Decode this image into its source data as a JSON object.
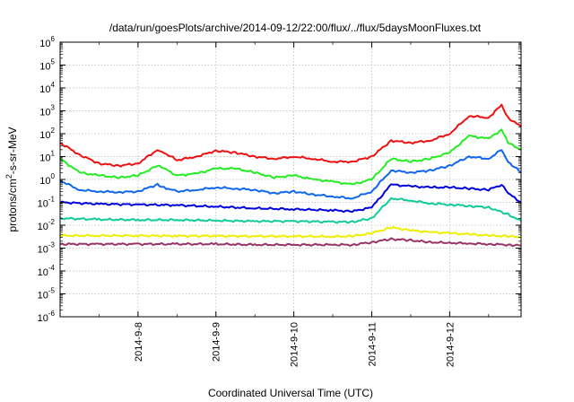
{
  "chart_data": {
    "type": "line",
    "title": "/data/run/goesPlots/archive/2014-09-12/22:00/flux/../flux/5daysMoonFluxes.txt",
    "xlabel": "Coordinated Universal Time (UTC)",
    "ylabel": "protons/cm2-s-sr-MeV",
    "ylabel_parts": {
      "before": "protons/cm",
      "sup": "2",
      "after": "-s-sr-MeV"
    },
    "y_scale": "log",
    "ylim": [
      1e-06,
      1000000
    ],
    "y_ticks": [
      {
        "base": "10",
        "exp": "6"
      },
      {
        "base": "10",
        "exp": "5"
      },
      {
        "base": "10",
        "exp": "4"
      },
      {
        "base": "10",
        "exp": "3"
      },
      {
        "base": "10",
        "exp": "2"
      },
      {
        "base": "10",
        "exp": "1"
      },
      {
        "base": "10",
        "exp": "0"
      },
      {
        "base": "10",
        "exp": "-1"
      },
      {
        "base": "10",
        "exp": "-2"
      },
      {
        "base": "10",
        "exp": "-3"
      },
      {
        "base": "10",
        "exp": "-4"
      },
      {
        "base": "10",
        "exp": "-5"
      },
      {
        "base": "10",
        "exp": "-6"
      }
    ],
    "xlim": [
      "2014-09-07",
      "2014-09-12 22:00"
    ],
    "x_ticks": [
      "2014-9-8",
      "2014-9-9",
      "2014-9-10",
      "2014-9-11",
      "2014-9-12"
    ],
    "grid": true,
    "series": [
      {
        "color": "#ee1111",
        "x": [
          "2014-09-07 00:00",
          "2014-09-07 06:00",
          "2014-09-07 12:00",
          "2014-09-07 18:00",
          "2014-09-08 00:00",
          "2014-09-08 06:00",
          "2014-09-08 08:00",
          "2014-09-08 12:00",
          "2014-09-08 18:00",
          "2014-09-09 00:00",
          "2014-09-09 06:00",
          "2014-09-09 12:00",
          "2014-09-09 18:00",
          "2014-09-10 00:00",
          "2014-09-10 06:00",
          "2014-09-10 12:00",
          "2014-09-10 18:00",
          "2014-09-11 00:00",
          "2014-09-11 06:00",
          "2014-09-11 12:00",
          "2014-09-11 18:00",
          "2014-09-12 00:00",
          "2014-09-12 06:00",
          "2014-09-12 12:00",
          "2014-09-12 16:00",
          "2014-09-12 18:00",
          "2014-09-12 22:00"
        ],
        "y": [
          40,
          12,
          5,
          4,
          5,
          20,
          15,
          7,
          10,
          18,
          15,
          10,
          8,
          10,
          8,
          6,
          6,
          10,
          50,
          40,
          50,
          100,
          600,
          500,
          1800,
          500,
          200
        ]
      },
      {
        "color": "#22ee22",
        "x": [
          "2014-09-07 00:00",
          "2014-09-07 06:00",
          "2014-09-07 12:00",
          "2014-09-07 18:00",
          "2014-09-08 00:00",
          "2014-09-08 06:00",
          "2014-09-08 08:00",
          "2014-09-08 12:00",
          "2014-09-08 18:00",
          "2014-09-09 00:00",
          "2014-09-09 06:00",
          "2014-09-09 12:00",
          "2014-09-09 18:00",
          "2014-09-10 00:00",
          "2014-09-10 06:00",
          "2014-09-10 12:00",
          "2014-09-10 18:00",
          "2014-09-11 00:00",
          "2014-09-11 06:00",
          "2014-09-11 12:00",
          "2014-09-11 18:00",
          "2014-09-12 00:00",
          "2014-09-12 06:00",
          "2014-09-12 12:00",
          "2014-09-12 16:00",
          "2014-09-12 18:00",
          "2014-09-12 22:00"
        ],
        "y": [
          8,
          2,
          1.5,
          1.2,
          1.5,
          4,
          3,
          1.5,
          1.8,
          3,
          3,
          2,
          1.2,
          1.5,
          1,
          0.8,
          0.6,
          1,
          8,
          6,
          8,
          15,
          80,
          60,
          150,
          40,
          20
        ]
      },
      {
        "color": "#1166ee",
        "x": [
          "2014-09-07 00:00",
          "2014-09-07 06:00",
          "2014-09-07 12:00",
          "2014-09-07 18:00",
          "2014-09-08 00:00",
          "2014-09-08 06:00",
          "2014-09-08 08:00",
          "2014-09-08 12:00",
          "2014-09-08 18:00",
          "2014-09-09 00:00",
          "2014-09-09 06:00",
          "2014-09-09 12:00",
          "2014-09-09 18:00",
          "2014-09-10 00:00",
          "2014-09-10 06:00",
          "2014-09-10 12:00",
          "2014-09-10 18:00",
          "2014-09-11 00:00",
          "2014-09-11 06:00",
          "2014-09-11 12:00",
          "2014-09-11 18:00",
          "2014-09-12 00:00",
          "2014-09-12 06:00",
          "2014-09-12 12:00",
          "2014-09-12 16:00",
          "2014-09-12 18:00",
          "2014-09-12 22:00"
        ],
        "y": [
          0.9,
          0.35,
          0.3,
          0.28,
          0.3,
          0.6,
          0.45,
          0.3,
          0.35,
          0.45,
          0.4,
          0.35,
          0.25,
          0.3,
          0.22,
          0.18,
          0.15,
          0.3,
          2.5,
          2,
          2.5,
          4,
          10,
          8,
          20,
          6,
          2
        ]
      },
      {
        "color": "#0000dd",
        "x": [
          "2014-09-07 00:00",
          "2014-09-07 12:00",
          "2014-09-08 00:00",
          "2014-09-08 12:00",
          "2014-09-09 00:00",
          "2014-09-09 12:00",
          "2014-09-10 00:00",
          "2014-09-10 12:00",
          "2014-09-10 18:00",
          "2014-09-11 00:00",
          "2014-09-11 06:00",
          "2014-09-11 12:00",
          "2014-09-11 18:00",
          "2014-09-12 00:00",
          "2014-09-12 06:00",
          "2014-09-12 12:00",
          "2014-09-12 16:00",
          "2014-09-12 18:00",
          "2014-09-12 22:00"
        ],
        "y": [
          0.1,
          0.085,
          0.08,
          0.075,
          0.065,
          0.055,
          0.05,
          0.045,
          0.04,
          0.06,
          0.6,
          0.5,
          0.45,
          0.45,
          0.4,
          0.35,
          0.6,
          0.25,
          0.1
        ]
      },
      {
        "color": "#11cc99",
        "x": [
          "2014-09-07 00:00",
          "2014-09-07 12:00",
          "2014-09-08 00:00",
          "2014-09-08 12:00",
          "2014-09-09 00:00",
          "2014-09-09 12:00",
          "2014-09-10 00:00",
          "2014-09-10 12:00",
          "2014-09-10 18:00",
          "2014-09-11 00:00",
          "2014-09-11 06:00",
          "2014-09-11 12:00",
          "2014-09-11 18:00",
          "2014-09-12 00:00",
          "2014-09-12 06:00",
          "2014-09-12 12:00",
          "2014-09-12 18:00",
          "2014-09-12 22:00"
        ],
        "y": [
          0.02,
          0.018,
          0.017,
          0.017,
          0.016,
          0.015,
          0.015,
          0.014,
          0.014,
          0.02,
          0.15,
          0.12,
          0.09,
          0.08,
          0.07,
          0.06,
          0.03,
          0.015
        ]
      },
      {
        "color": "#eeee00",
        "x": [
          "2014-09-07 00:00",
          "2014-09-07 12:00",
          "2014-09-08 00:00",
          "2014-09-08 12:00",
          "2014-09-09 00:00",
          "2014-09-09 12:00",
          "2014-09-10 00:00",
          "2014-09-10 12:00",
          "2014-09-10 18:00",
          "2014-09-11 00:00",
          "2014-09-11 06:00",
          "2014-09-11 12:00",
          "2014-09-11 18:00",
          "2014-09-12 00:00",
          "2014-09-12 06:00",
          "2014-09-12 12:00",
          "2014-09-12 18:00",
          "2014-09-12 22:00"
        ],
        "y": [
          0.0035,
          0.0035,
          0.0035,
          0.0034,
          0.0034,
          0.0033,
          0.0033,
          0.0032,
          0.0033,
          0.0045,
          0.008,
          0.006,
          0.005,
          0.0045,
          0.004,
          0.0035,
          0.0033,
          0.003
        ]
      },
      {
        "color": "#993366",
        "x": [
          "2014-09-07 00:00",
          "2014-09-07 12:00",
          "2014-09-08 00:00",
          "2014-09-08 12:00",
          "2014-09-09 00:00",
          "2014-09-09 12:00",
          "2014-09-10 00:00",
          "2014-09-10 12:00",
          "2014-09-10 18:00",
          "2014-09-11 00:00",
          "2014-09-11 06:00",
          "2014-09-11 12:00",
          "2014-09-11 18:00",
          "2014-09-12 00:00",
          "2014-09-12 06:00",
          "2014-09-12 12:00",
          "2014-09-12 18:00",
          "2014-09-12 22:00"
        ],
        "y": [
          0.0015,
          0.0015,
          0.0015,
          0.0015,
          0.0015,
          0.0014,
          0.0014,
          0.0014,
          0.0014,
          0.0018,
          0.0025,
          0.0022,
          0.0018,
          0.0017,
          0.0016,
          0.0015,
          0.0014,
          0.0013
        ]
      }
    ]
  }
}
